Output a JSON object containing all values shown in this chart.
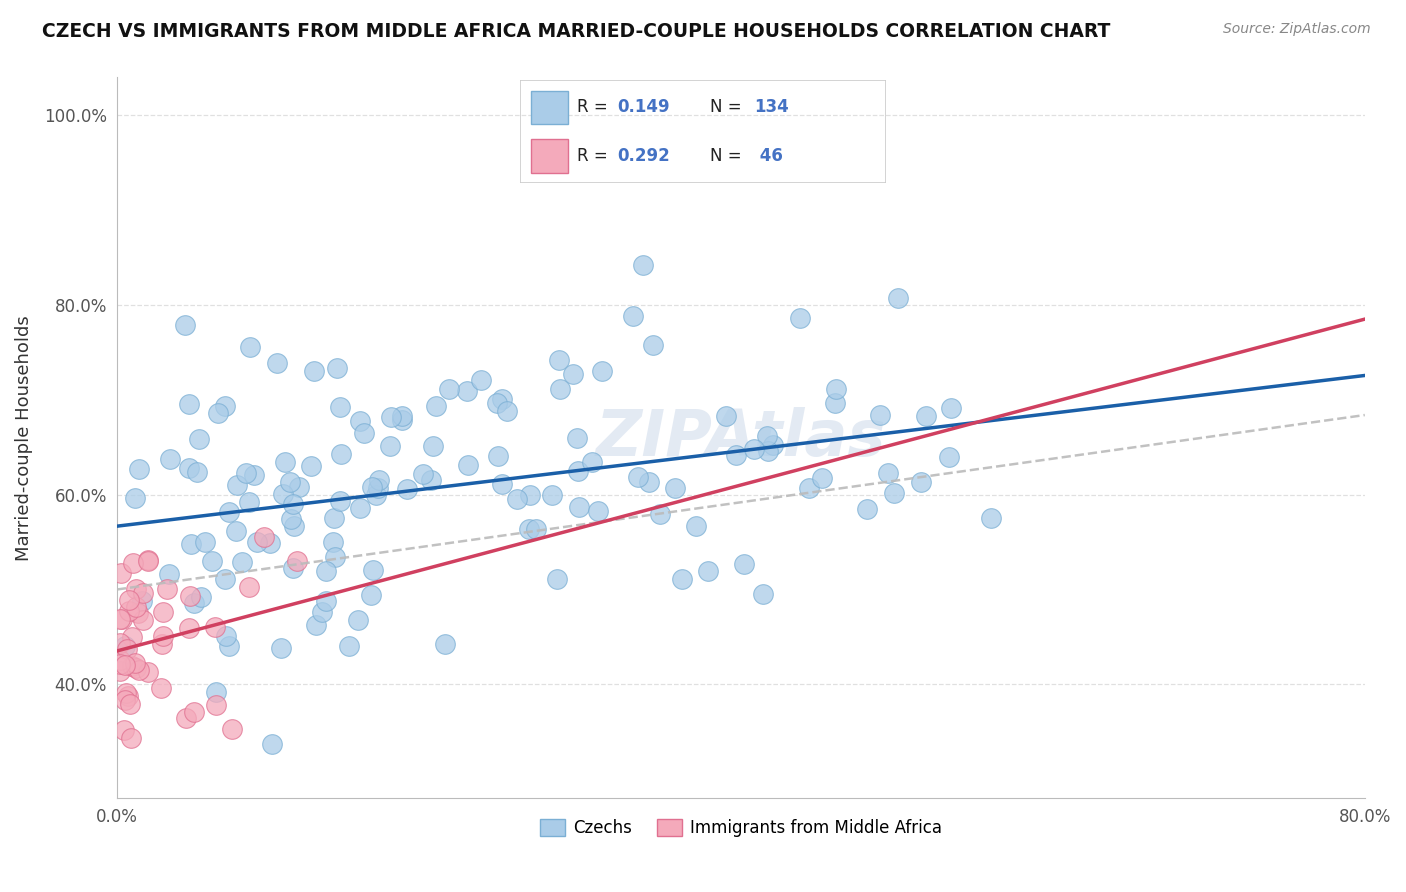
{
  "title": "CZECH VS IMMIGRANTS FROM MIDDLE AFRICA MARRIED-COUPLE HOUSEHOLDS CORRELATION CHART",
  "source": "Source: ZipAtlas.com",
  "ylabel": "Married-couple Households",
  "xlim": [
    0.0,
    0.8
  ],
  "ylim": [
    0.28,
    1.04
  ],
  "czech_color": "#aacce8",
  "czech_edge": "#7bafd4",
  "immigrant_color": "#f4aabb",
  "immigrant_edge": "#e07090",
  "trend_blue": "#1a5fa8",
  "trend_pink": "#d04060",
  "trend_gray": "#bbbbbb",
  "R_czech": 0.149,
  "N_czech": 134,
  "R_immigrant": 0.292,
  "N_immigrant": 46,
  "legend_label_czech": "Czechs",
  "legend_label_immigrant": "Immigrants from Middle Africa",
  "label_color": "#4472c4",
  "text_color": "#222222",
  "gray_slope": 0.23,
  "gray_intercept": 0.5
}
